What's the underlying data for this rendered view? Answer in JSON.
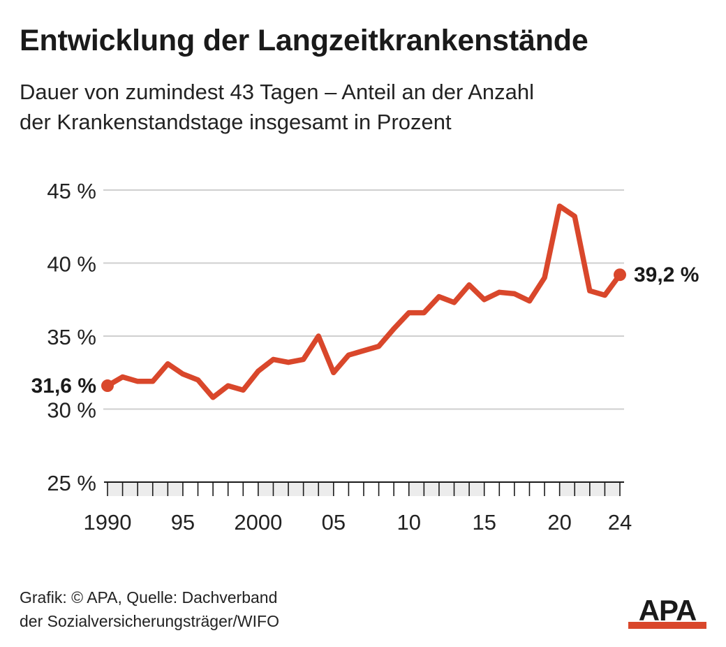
{
  "header": {
    "title": "Entwicklung der Langzeitkrankenstände",
    "subtitle_line1": "Dauer von zumindest 43 Tagen – Anteil an der Anzahl",
    "subtitle_line2": "der Krankenstandstage insgesamt in Prozent"
  },
  "chart_data": {
    "type": "line",
    "title": "Entwicklung der Langzeitkrankenstände",
    "subtitle": "Dauer von zumindest 43 Tagen – Anteil an der Anzahl der Krankenstandstage insgesamt in Prozent",
    "xlabel": "",
    "ylabel": "",
    "ylim": [
      25,
      45
    ],
    "xlim": [
      1990,
      2024
    ],
    "yticks": [
      25,
      30,
      35,
      40,
      45
    ],
    "ytick_labels": [
      "25 %",
      "30 %",
      "35 %",
      "40 %",
      "45 %"
    ],
    "xticks": [
      1990,
      1995,
      2000,
      2005,
      2010,
      2015,
      2020,
      2024
    ],
    "xtick_labels": [
      "1990",
      "95",
      "2000",
      "05",
      "10",
      "15",
      "20",
      "24"
    ],
    "grid": true,
    "colors": {
      "line": "#d9472b",
      "grid": "#cfcfcf",
      "axis": "#1a1a1a",
      "shade": "#ececec"
    },
    "x": [
      1990,
      1991,
      1992,
      1993,
      1994,
      1995,
      1996,
      1997,
      1998,
      1999,
      2000,
      2001,
      2002,
      2003,
      2004,
      2005,
      2006,
      2007,
      2008,
      2009,
      2010,
      2011,
      2012,
      2013,
      2014,
      2015,
      2016,
      2017,
      2018,
      2019,
      2020,
      2021,
      2022,
      2023,
      2024
    ],
    "values": [
      31.6,
      32.2,
      31.9,
      31.9,
      33.1,
      32.4,
      32.0,
      30.8,
      31.6,
      31.3,
      32.6,
      33.4,
      33.2,
      33.4,
      35.0,
      32.5,
      33.7,
      34.0,
      34.3,
      35.5,
      36.6,
      36.6,
      37.7,
      37.3,
      38.5,
      37.5,
      38.0,
      37.9,
      37.4,
      39.0,
      43.9,
      43.2,
      38.1,
      37.8,
      39.2
    ],
    "annotations": [
      {
        "x": 1990,
        "value": 31.6,
        "label": "31,6 %"
      },
      {
        "x": 2024,
        "value": 39.2,
        "label": "39,2 %"
      }
    ]
  },
  "footer": {
    "source_line1": "Grafik: © APA, Quelle: Dachverband",
    "source_line2": "der Sozialversicherungsträger/WIFO",
    "logo_text": "APA",
    "logo_color": "#d9472b"
  }
}
